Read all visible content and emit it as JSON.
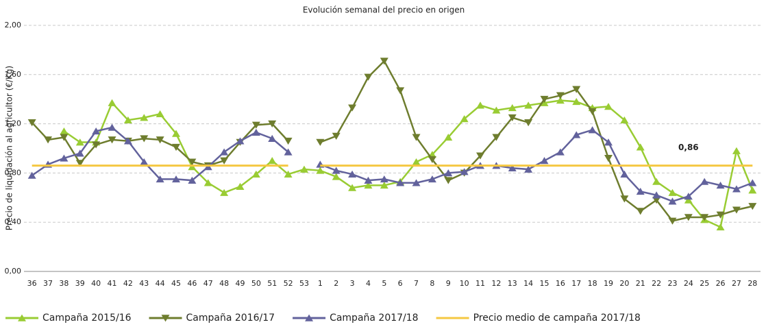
{
  "chart_data": {
    "type": "line",
    "title": "Evolución semanal del precio en origen",
    "y_label": "Precio de liquidación al agricultor (€/Kg)",
    "categories": [
      "36",
      "37",
      "38",
      "39",
      "40",
      "41",
      "42",
      "43",
      "44",
      "45",
      "46",
      "47",
      "48",
      "49",
      "50",
      "51",
      "52",
      "53",
      "1",
      "2",
      "3",
      "4",
      "5",
      "6",
      "7",
      "8",
      "9",
      "10",
      "11",
      "12",
      "13",
      "14",
      "15",
      "16",
      "17",
      "18",
      "19",
      "20",
      "21",
      "22",
      "23",
      "24",
      "25",
      "26",
      "27",
      "28"
    ],
    "ylim": [
      0,
      2
    ],
    "yticks": [
      {
        "value": 0,
        "label": "0,00"
      },
      {
        "value": 0.4,
        "label": "0,40"
      },
      {
        "value": 0.8,
        "label": "0,80"
      },
      {
        "value": 1.2,
        "label": "1,20"
      },
      {
        "value": 1.6,
        "label": "1,60"
      },
      {
        "value": 2,
        "label": "2,00"
      }
    ],
    "grid": true,
    "legend": "bottom",
    "series": [
      {
        "name": "Campaña 2015/16",
        "color": "#99cc33",
        "marker": "triangle-up",
        "values": [
          null,
          null,
          1.14,
          1.05,
          1.05,
          1.37,
          1.23,
          1.25,
          1.28,
          1.12,
          0.85,
          0.72,
          0.64,
          0.69,
          0.79,
          0.9,
          0.79,
          0.83,
          0.82,
          0.77,
          0.68,
          0.7,
          0.7,
          0.73,
          0.89,
          0.95,
          1.09,
          1.24,
          1.35,
          1.31,
          1.33,
          1.35,
          1.37,
          1.39,
          1.38,
          1.33,
          1.34,
          1.23,
          1.01,
          0.73,
          0.64,
          0.58,
          0.42,
          0.36,
          0.98,
          0.66
        ]
      },
      {
        "name": "Campaña 2016/17",
        "color": "#6e7d2e",
        "marker": "triangle-down",
        "values": [
          1.21,
          1.07,
          1.09,
          0.88,
          1.03,
          1.07,
          1.06,
          1.08,
          1.07,
          1.01,
          0.89,
          0.86,
          0.9,
          1.05,
          1.19,
          1.2,
          1.06,
          null,
          1.05,
          1.1,
          1.33,
          1.58,
          1.71,
          1.47,
          1.09,
          0.91,
          0.74,
          0.8,
          0.94,
          1.09,
          1.25,
          1.21,
          1.4,
          1.43,
          1.48,
          1.3,
          0.92,
          0.59,
          0.49,
          0.58,
          0.41,
          0.44,
          0.44,
          0.46,
          0.5,
          0.53
        ]
      },
      {
        "name": "Campaña 2017/18",
        "color": "#62629c",
        "marker": "triangle-up",
        "values": [
          0.78,
          0.87,
          0.92,
          0.96,
          1.14,
          1.17,
          1.06,
          0.89,
          0.75,
          0.75,
          0.74,
          0.85,
          0.97,
          1.06,
          1.13,
          1.08,
          0.97,
          null,
          0.87,
          0.82,
          0.79,
          0.74,
          0.75,
          0.72,
          0.72,
          0.75,
          0.8,
          0.81,
          0.86,
          0.86,
          0.84,
          0.83,
          0.9,
          0.97,
          1.11,
          1.15,
          1.05,
          0.79,
          0.65,
          0.62,
          0.57,
          0.61,
          0.73,
          0.7,
          0.67,
          0.72
        ]
      },
      {
        "name": "Precio medio de campaña 2017/18",
        "color": "#f5c842",
        "marker": "none",
        "values": [
          0.86,
          0.86,
          0.86,
          0.86,
          0.86,
          0.86,
          0.86,
          0.86,
          0.86,
          0.86,
          0.86,
          0.86,
          0.86,
          0.86,
          0.86,
          0.86,
          0.86,
          null,
          0.86,
          0.86,
          0.86,
          0.86,
          0.86,
          0.86,
          0.86,
          0.86,
          0.86,
          0.86,
          0.86,
          0.86,
          0.86,
          0.86,
          0.86,
          0.86,
          0.86,
          0.86,
          0.86,
          0.86,
          0.86,
          0.86,
          0.86,
          0.86,
          0.86,
          0.86,
          0.86,
          0.86
        ],
        "annotation": "0,86"
      }
    ]
  }
}
